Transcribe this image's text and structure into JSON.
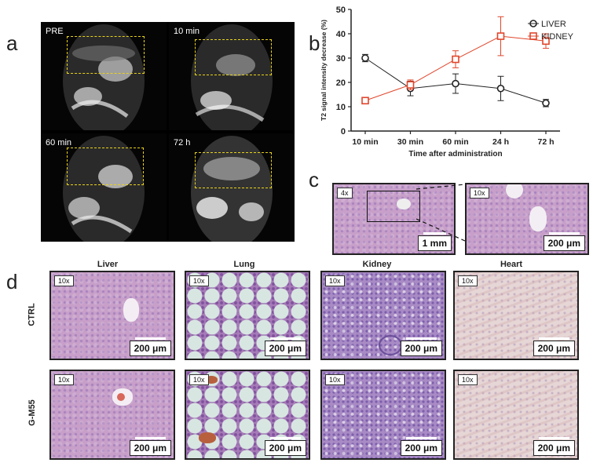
{
  "panel_labels": {
    "a": "a",
    "b": "b",
    "c": "c",
    "d": "d"
  },
  "mri": {
    "frames": [
      {
        "label": "PRE"
      },
      {
        "label": "10 min"
      },
      {
        "label": "60 min"
      },
      {
        "label": "72 h"
      }
    ],
    "roi_color": "#e8d21a"
  },
  "chart_data": {
    "type": "line",
    "categories": [
      "10 min",
      "30 min",
      "60 min",
      "24 h",
      "72 h"
    ],
    "ylabel": "T2 signal intensity decrease (%)",
    "xlabel": "Time after administration",
    "ylim": [
      0,
      50
    ],
    "yticks": [
      0,
      10,
      20,
      30,
      40,
      50
    ],
    "legend_position": "top-right",
    "grid": false,
    "series": [
      {
        "name": "LIVER",
        "color": "#222222",
        "marker": "circle",
        "values": [
          30,
          17.5,
          19.5,
          17.5,
          11.5
        ],
        "errors": [
          1.5,
          3,
          4,
          5,
          1.5
        ]
      },
      {
        "name": "KIDNEY",
        "color": "#e0452b",
        "marker": "square",
        "values": [
          12.5,
          19,
          29.5,
          39,
          37
        ],
        "errors": [
          0.5,
          2,
          3.5,
          8,
          3
        ]
      }
    ]
  },
  "panel_c": {
    "overview": {
      "mag": "4x",
      "scale": "1 mm"
    },
    "zoom": {
      "mag": "10x",
      "scale": "200 μm"
    }
  },
  "panel_d": {
    "columns": [
      "Liver",
      "Lung",
      "Kidney",
      "Heart"
    ],
    "rows": [
      "CTRL",
      "G-M55"
    ],
    "mag": "10x",
    "scale": "200 μm"
  }
}
